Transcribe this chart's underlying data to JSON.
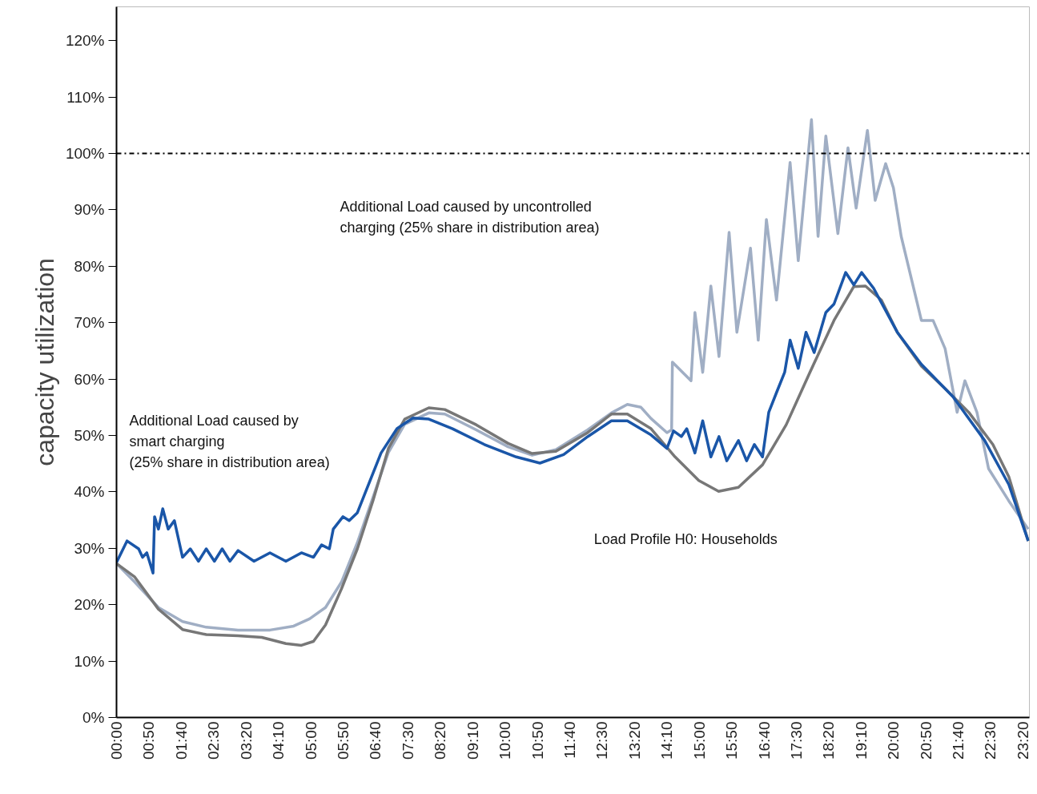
{
  "chart_data": {
    "type": "line",
    "ylabel": "capacity utilization",
    "xlim": [
      0,
      23.5
    ],
    "ylim": [
      0,
      126
    ],
    "xticks": [
      {
        "value": 0,
        "label": "00:00"
      },
      {
        "value": 0.8333,
        "label": "00:50"
      },
      {
        "value": 1.6667,
        "label": "01:40"
      },
      {
        "value": 2.5,
        "label": "02:30"
      },
      {
        "value": 3.3333,
        "label": "03:20"
      },
      {
        "value": 4.1667,
        "label": "04:10"
      },
      {
        "value": 5,
        "label": "05:00"
      },
      {
        "value": 5.8333,
        "label": "05:50"
      },
      {
        "value": 6.6667,
        "label": "06:40"
      },
      {
        "value": 7.5,
        "label": "07:30"
      },
      {
        "value": 8.3333,
        "label": "08:20"
      },
      {
        "value": 9.1667,
        "label": "09:10"
      },
      {
        "value": 10,
        "label": "10:00"
      },
      {
        "value": 10.8333,
        "label": "10:50"
      },
      {
        "value": 11.6667,
        "label": "11:40"
      },
      {
        "value": 12.5,
        "label": "12:30"
      },
      {
        "value": 13.3333,
        "label": "13:20"
      },
      {
        "value": 14.1667,
        "label": "14:10"
      },
      {
        "value": 15,
        "label": "15:00"
      },
      {
        "value": 15.8333,
        "label": "15:50"
      },
      {
        "value": 16.6667,
        "label": "16:40"
      },
      {
        "value": 17.5,
        "label": "17:30"
      },
      {
        "value": 18.3333,
        "label": "18:20"
      },
      {
        "value": 19.1667,
        "label": "19:10"
      },
      {
        "value": 20,
        "label": "20:00"
      },
      {
        "value": 20.8333,
        "label": "20:50"
      },
      {
        "value": 21.6667,
        "label": "21:40"
      },
      {
        "value": 22.5,
        "label": "22:30"
      },
      {
        "value": 23.3333,
        "label": "23:20"
      }
    ],
    "yticks": [
      {
        "value": 0,
        "label": "0%"
      },
      {
        "value": 10,
        "label": "10%"
      },
      {
        "value": 20,
        "label": "20%"
      },
      {
        "value": 30,
        "label": "30%"
      },
      {
        "value": 40,
        "label": "40%"
      },
      {
        "value": 50,
        "label": "50%"
      },
      {
        "value": 60,
        "label": "60%"
      },
      {
        "value": 70,
        "label": "70%"
      },
      {
        "value": 80,
        "label": "80%"
      },
      {
        "value": 90,
        "label": "90%"
      },
      {
        "value": 100,
        "label": "100%"
      },
      {
        "value": 110,
        "label": "110%"
      },
      {
        "value": 120,
        "label": "120%"
      }
    ],
    "grid": false,
    "marker": "none",
    "line_style": "solid",
    "ref_lines": [
      {
        "axis": "y",
        "value": 100,
        "label": null,
        "color": "#000000",
        "line_style": "dashdot"
      }
    ],
    "annotations": [
      "Additional Load caused by uncontrolled\ncharging (25% share in distribution area)",
      "Additional Load caused by\nsmart charging\n(25% share in distribution area)",
      "Load Profile H0: Households"
    ],
    "series": [
      {
        "color": "#a0aec4",
        "x": [
          0,
          0.47,
          1.08,
          1.7,
          2.31,
          3.13,
          3.95,
          4.56,
          4.97,
          5.38,
          5.79,
          6.2,
          6.6,
          7.0,
          7.42,
          8.04,
          8.45,
          9.26,
          10.08,
          10.7,
          11.31,
          12.13,
          12.74,
          13.15,
          13.5,
          13.76,
          14.17,
          14.29,
          14.31,
          14.79,
          14.89,
          15.09,
          15.3,
          15.51,
          15.77,
          15.97,
          16.32,
          16.52,
          16.73,
          16.99,
          17.34,
          17.55,
          17.89,
          18.06,
          18.26,
          18.57,
          18.83,
          19.04,
          19.33,
          19.53,
          19.8,
          20.0,
          20.2,
          20.72,
          21.02,
          21.33,
          21.64,
          21.84,
          22.15,
          22.45,
          22.97,
          23.47
        ],
        "values": [
          27.3,
          24,
          19.5,
          17,
          16,
          15.5,
          15.5,
          16.2,
          17.5,
          19.5,
          24,
          31,
          39,
          47,
          52,
          54,
          53.8,
          51,
          48,
          46.5,
          47.5,
          51,
          54,
          55.5,
          55,
          53,
          50.5,
          51,
          63,
          59.7,
          71.8,
          61.2,
          76.5,
          64,
          86,
          68.3,
          83.2,
          66.9,
          88.3,
          74,
          98.4,
          81,
          106,
          85.3,
          103.1,
          85.8,
          101,
          90.3,
          104.1,
          91.7,
          98.2,
          93.9,
          85.3,
          70.4,
          70.4,
          65.4,
          54.1,
          59.7,
          54.1,
          44.1,
          38.4,
          33.4
        ]
      },
      {
        "color": "#777777",
        "x": [
          0,
          0.47,
          1.08,
          1.7,
          2.31,
          3.13,
          3.74,
          4.36,
          4.76,
          5.07,
          5.38,
          5.79,
          6.2,
          6.6,
          7.0,
          7.42,
          8.04,
          8.45,
          9.26,
          10.08,
          10.7,
          11.31,
          12.13,
          12.74,
          13.15,
          13.76,
          14.38,
          14.99,
          15.5,
          16.01,
          16.63,
          17.24,
          17.85,
          18.47,
          18.98,
          19.28,
          19.69,
          20.1,
          20.72,
          21.33,
          21.94,
          22.56,
          22.97,
          23.47
        ],
        "values": [
          27.3,
          24.9,
          19.2,
          15.6,
          14.7,
          14.5,
          14.2,
          13.1,
          12.8,
          13.5,
          16.4,
          22.8,
          29.9,
          38.4,
          47.7,
          52.9,
          54.9,
          54.6,
          51.9,
          48.6,
          46.8,
          47.2,
          50.5,
          53.8,
          53.8,
          51.2,
          46.2,
          42.0,
          40.1,
          40.8,
          44.8,
          51.9,
          61.2,
          70.4,
          76.4,
          76.5,
          74,
          68.3,
          62.3,
          58.3,
          54.1,
          48.4,
          42.7,
          31.3
        ]
      },
      {
        "color": "#1a56a8",
        "x": [
          0,
          0.27,
          0.57,
          0.67,
          0.78,
          0.94,
          0.98,
          1.08,
          1.19,
          1.33,
          1.49,
          1.7,
          1.9,
          2.11,
          2.31,
          2.52,
          2.72,
          2.92,
          3.13,
          3.54,
          3.95,
          4.36,
          4.76,
          5.07,
          5.28,
          5.48,
          5.58,
          5.83,
          5.99,
          6.2,
          6.4,
          6.81,
          7.22,
          7.63,
          8.04,
          8.65,
          9.47,
          10.29,
          10.9,
          11.51,
          12.13,
          12.74,
          13.15,
          13.76,
          14.17,
          14.34,
          14.54,
          14.68,
          14.89,
          15.09,
          15.3,
          15.51,
          15.71,
          16.01,
          16.22,
          16.42,
          16.63,
          16.79,
          16.99,
          17.2,
          17.34,
          17.55,
          17.75,
          17.96,
          18.26,
          18.47,
          18.77,
          18.98,
          19.18,
          19.49,
          20.1,
          20.72,
          21.53,
          22.35,
          22.97,
          23.47
        ],
        "values": [
          27.5,
          31.3,
          29.9,
          28.4,
          29.2,
          25.6,
          35.6,
          33.4,
          37,
          33.4,
          34.9,
          28.4,
          29.9,
          27.7,
          29.9,
          27.7,
          29.9,
          27.7,
          29.6,
          27.7,
          29.2,
          27.7,
          29.2,
          28.4,
          30.6,
          29.9,
          33.4,
          35.6,
          34.9,
          36.3,
          39.8,
          46.9,
          51.2,
          53.1,
          52.9,
          51.2,
          48.4,
          46.2,
          45.1,
          46.6,
          49.8,
          52.6,
          52.6,
          50.1,
          47.7,
          50.8,
          49.8,
          51.2,
          46.9,
          52.6,
          46.2,
          49.8,
          45.5,
          49.1,
          45.5,
          48.4,
          46.2,
          54.1,
          57.6,
          61.2,
          66.9,
          61.9,
          68.3,
          64.7,
          71.8,
          73.3,
          78.9,
          76.7,
          78.9,
          76.1,
          68.3,
          62.6,
          56.9,
          49.1,
          41.3,
          31.3
        ]
      }
    ]
  }
}
